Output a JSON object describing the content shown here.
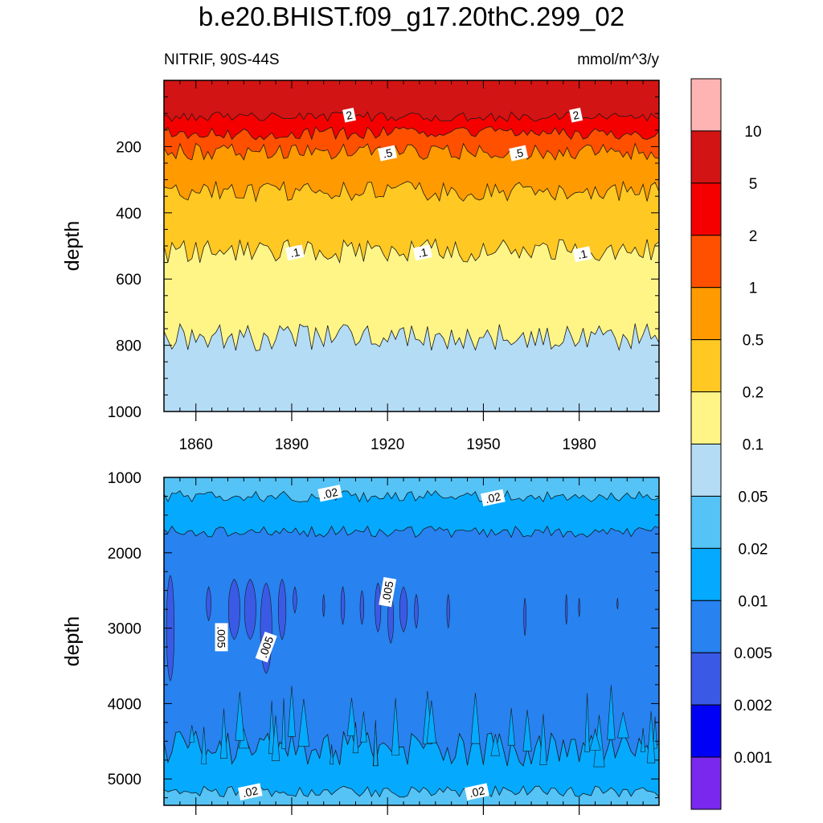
{
  "title": "b.e20.BHIST.f09_g17.20thC.299_02",
  "subtitle_left": "NITRIF, 90S-44S",
  "subtitle_right": "mmol/m^3/y",
  "chart_data": [
    {
      "type": "heatmap",
      "panel": "upper",
      "plot_style": "filled contour",
      "ylabel": "depth",
      "y_axis_reversed": true,
      "ylim": [
        0,
        1000
      ],
      "xlim": [
        1850,
        2005
      ],
      "yticks": [
        200,
        400,
        600,
        800,
        1000
      ],
      "xticks": [
        1860,
        1890,
        1920,
        1950,
        1980
      ],
      "contour_boundaries": [
        {
          "level": 2,
          "mean_depth": 110
        },
        {
          "level": 1,
          "mean_depth": 160
        },
        {
          "level": 0.5,
          "mean_depth": 215
        },
        {
          "level": 0.2,
          "mean_depth": 335
        },
        {
          "level": 0.1,
          "mean_depth": 515
        },
        {
          "level": 0.05,
          "mean_depth": 775
        }
      ],
      "contour_labels": [
        {
          "text": "2",
          "x": 1908,
          "y": 105
        },
        {
          "text": "2",
          "x": 1979,
          "y": 105
        },
        {
          "text": ".5",
          "x": 1920,
          "y": 220
        },
        {
          "text": ".5",
          "x": 1961,
          "y": 220
        },
        {
          "text": ".1",
          "x": 1891,
          "y": 520
        },
        {
          "text": ".1",
          "x": 1931,
          "y": 520
        },
        {
          "text": ".1",
          "x": 1981,
          "y": 525
        }
      ]
    },
    {
      "type": "heatmap",
      "panel": "lower",
      "plot_style": "filled contour",
      "ylabel": "depth",
      "y_axis_reversed": true,
      "ylim": [
        1000,
        5350
      ],
      "xlim": [
        1850,
        2005
      ],
      "yticks": [
        1000,
        2000,
        3000,
        4000,
        5000
      ],
      "contour_boundaries": [
        {
          "level": 0.02,
          "mean_depth": 1250
        },
        {
          "level": 0.01,
          "mean_depth": 1720
        },
        {
          "level": 0.005,
          "mean_depth": 2400
        },
        {
          "level": 0.01,
          "mean_depth": 4600
        },
        {
          "level": 0.02,
          "mean_depth": 5170
        }
      ],
      "contour_labels": [
        {
          "text": ".02",
          "x": 1902,
          "y": 1210
        },
        {
          "text": ".02",
          "x": 1953,
          "y": 1270
        },
        {
          "text": ".005",
          "x": 1920,
          "y": 2520
        },
        {
          "text": ".005",
          "x": 1868,
          "y": 3120
        },
        {
          "text": ".005",
          "x": 1882,
          "y": 3250
        },
        {
          "text": ".02",
          "x": 1877,
          "y": 5170
        },
        {
          "text": ".02",
          "x": 1948,
          "y": 5170
        }
      ]
    }
  ],
  "colorbar": {
    "colors": [
      "#ffb4b4",
      "#d21414",
      "#f50000",
      "#ff5000",
      "#ff9a00",
      "#ffc823",
      "#fff587",
      "#b4dcf5",
      "#55c3f5",
      "#05aaff",
      "#2882f0",
      "#3a5ae6",
      "#0000f5",
      "#7a28ee"
    ],
    "labels": [
      "10",
      "5",
      "2",
      "1",
      "0.5",
      "0.2",
      "0.1",
      "0.05",
      "0.02",
      "0.01",
      "0.005",
      "0.002",
      "0.001"
    ]
  }
}
